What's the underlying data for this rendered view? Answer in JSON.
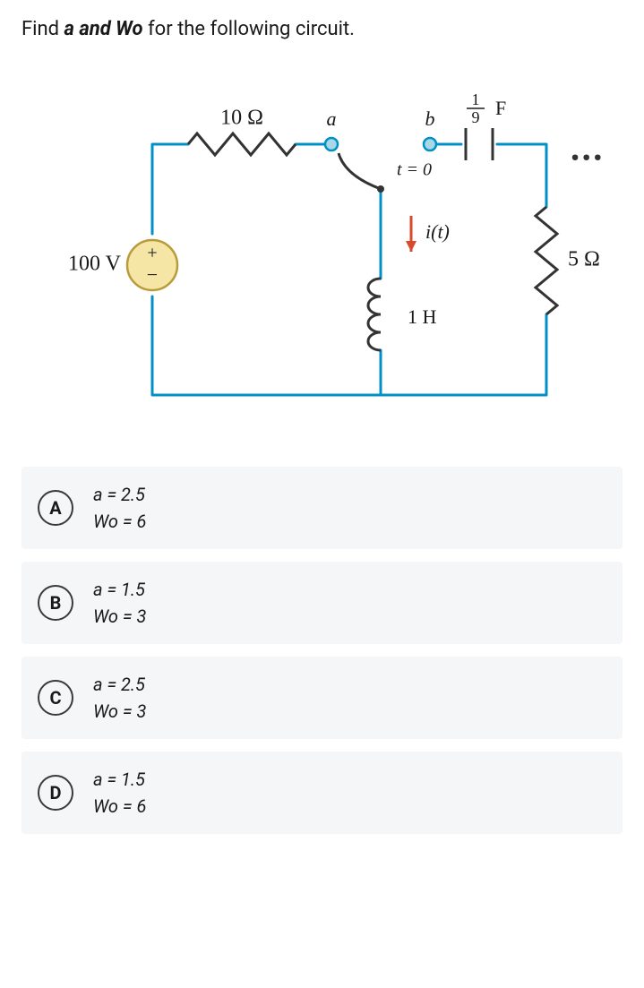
{
  "question": {
    "prefix": "Find ",
    "emph": "a and Wo",
    "suffix": " for the following circuit."
  },
  "circuit": {
    "source_label": "100 V",
    "resistor1_label": "10 Ω",
    "resistor2_label": "5 Ω",
    "cap_label_num": "1",
    "cap_label_den": "9",
    "cap_unit": "F",
    "inductor_label": "1 H",
    "switch_a": "a",
    "switch_b": "b",
    "time_label": "t = 0",
    "current_label": "i(t)",
    "wire_color": "#0090c8",
    "component_color": "#333333",
    "terminal_fill": "#a8d8e6",
    "terminal_stroke": "#0090c8",
    "source_fill": "#f5e6a6",
    "source_stroke": "#b89b3a",
    "arrow_color": "#d94a2a",
    "label_color": "#1a1a1a",
    "wire_width": 3
  },
  "options": [
    {
      "letter": "A",
      "line1": "a = 2.5",
      "line2": "Wo = 6"
    },
    {
      "letter": "B",
      "line1": "a = 1.5",
      "line2": "Wo = 3"
    },
    {
      "letter": "C",
      "line1": "a = 2.5",
      "line2": "Wo = 3"
    },
    {
      "letter": "D",
      "line1": "a = 1.5",
      "line2": "Wo = 6"
    }
  ],
  "more_icon": "•••"
}
